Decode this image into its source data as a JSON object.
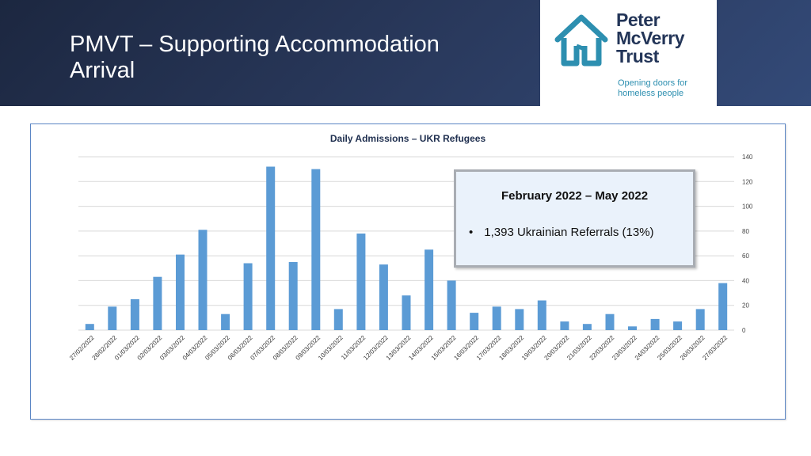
{
  "slide": {
    "title_line1": "PMVT – Supporting Accommodation",
    "title_line2": "Arrival"
  },
  "logo": {
    "name_line1": "Peter",
    "name_line2": "McVerry",
    "name_line3": "Trust",
    "tagline_line1": "Opening doors for",
    "tagline_line2": "homeless people",
    "icon": "house-logo-icon",
    "colors": {
      "house": "#2d8fb0",
      "name": "#233558"
    }
  },
  "info_box": {
    "heading": "February 2022 – May 2022",
    "bullet": "1,393 Ukrainian Referrals (13%)"
  },
  "colors": {
    "bar": "#5b9bd5",
    "gridline": "#d9d9d9",
    "header_bg": "#24345a",
    "frame_border": "#5b86c5"
  },
  "chart_data": {
    "type": "bar",
    "title": "Daily Admissions – UKR Refugees",
    "xlabel": "",
    "ylabel": "",
    "ylim": [
      0,
      140
    ],
    "yticks": [
      0,
      20,
      40,
      60,
      80,
      100,
      120,
      140
    ],
    "y_axis_side": "right",
    "grid": true,
    "categories": [
      "27/02/2022",
      "28/02/2022",
      "01/03/2022",
      "02/03/2022",
      "03/03/2022",
      "04/03/2022",
      "05/03/2022",
      "06/03/2022",
      "07/03/2022",
      "08/03/2022",
      "09/03/2022",
      "10/03/2022",
      "11/03/2022",
      "12/03/2022",
      "13/03/2022",
      "14/03/2022",
      "15/03/2022",
      "16/03/2022",
      "17/03/2022",
      "18/03/2022",
      "19/03/2022",
      "20/03/2022",
      "21/03/2022",
      "22/03/2022",
      "23/03/2022",
      "24/03/2022",
      "25/03/2022",
      "26/03/2022",
      "27/03/2022"
    ],
    "values": [
      5,
      19,
      25,
      43,
      61,
      81,
      13,
      54,
      132,
      55,
      130,
      17,
      78,
      53,
      28,
      65,
      40,
      14,
      19,
      17,
      24,
      7,
      5,
      13,
      3,
      9,
      7,
      17,
      38
    ]
  }
}
